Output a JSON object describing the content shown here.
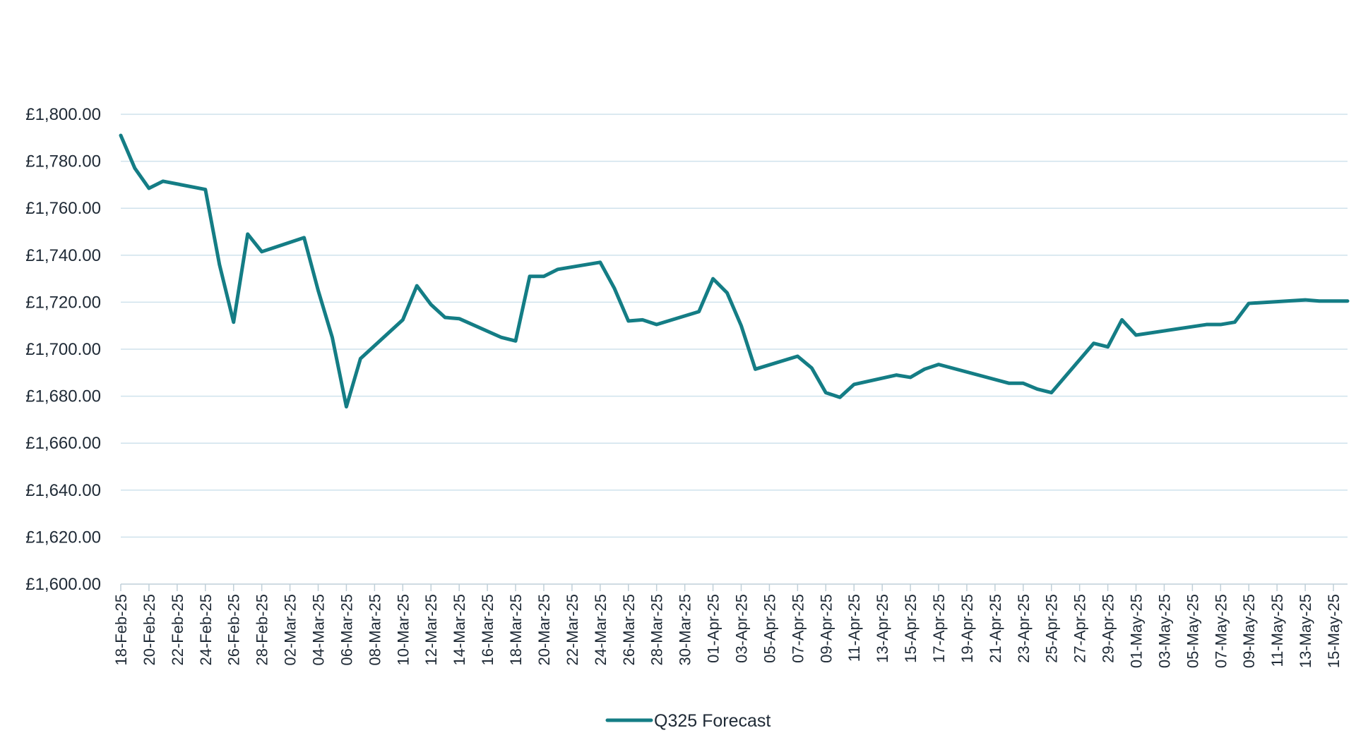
{
  "chart_data": {
    "type": "line",
    "ylim": [
      1600,
      1800
    ],
    "y_ticks": [
      1600,
      1620,
      1640,
      1660,
      1680,
      1700,
      1720,
      1740,
      1760,
      1780,
      1800
    ],
    "y_tick_labels": [
      "£1,600.00",
      "£1,620.00",
      "£1,640.00",
      "£1,660.00",
      "£1,680.00",
      "£1,700.00",
      "£1,720.00",
      "£1,740.00",
      "£1,760.00",
      "£1,780.00",
      "£1,800.00"
    ],
    "x_range": [
      "2025-02-18",
      "2025-05-16"
    ],
    "x_tick_labels": [
      "18-Feb-25",
      "20-Feb-25",
      "22-Feb-25",
      "24-Feb-25",
      "26-Feb-25",
      "28-Feb-25",
      "02-Mar-25",
      "04-Mar-25",
      "06-Mar-25",
      "08-Mar-25",
      "10-Mar-25",
      "12-Mar-25",
      "14-Mar-25",
      "16-Mar-25",
      "18-Mar-25",
      "20-Mar-25",
      "22-Mar-25",
      "24-Mar-25",
      "26-Mar-25",
      "28-Mar-25",
      "30-Mar-25",
      "01-Apr-25",
      "03-Apr-25",
      "05-Apr-25",
      "07-Apr-25",
      "09-Apr-25",
      "11-Apr-25",
      "13-Apr-25",
      "15-Apr-25",
      "17-Apr-25",
      "19-Apr-25",
      "21-Apr-25",
      "23-Apr-25",
      "25-Apr-25",
      "27-Apr-25",
      "29-Apr-25",
      "01-May-25",
      "03-May-25",
      "05-May-25",
      "07-May-25",
      "09-May-25",
      "11-May-25",
      "13-May-25",
      "15-May-25"
    ],
    "grid": true,
    "legend_position": "bottom-center",
    "series": [
      {
        "name": "Q325 Forecast",
        "color": "#147d85",
        "points": [
          {
            "x": "2025-02-18",
            "y": 1791
          },
          {
            "x": "2025-02-19",
            "y": 1777
          },
          {
            "x": "2025-02-20",
            "y": 1768.5
          },
          {
            "x": "2025-02-21",
            "y": 1771.5
          },
          {
            "x": "2025-02-24",
            "y": 1768
          },
          {
            "x": "2025-02-25",
            "y": 1736
          },
          {
            "x": "2025-02-26",
            "y": 1711.5
          },
          {
            "x": "2025-02-27",
            "y": 1749
          },
          {
            "x": "2025-02-28",
            "y": 1741.5
          },
          {
            "x": "2025-03-03",
            "y": 1747.5
          },
          {
            "x": "2025-03-04",
            "y": 1725
          },
          {
            "x": "2025-03-05",
            "y": 1705
          },
          {
            "x": "2025-03-06",
            "y": 1675.5
          },
          {
            "x": "2025-03-07",
            "y": 1696
          },
          {
            "x": "2025-03-10",
            "y": 1712.5
          },
          {
            "x": "2025-03-11",
            "y": 1727
          },
          {
            "x": "2025-03-12",
            "y": 1719
          },
          {
            "x": "2025-03-13",
            "y": 1713.5
          },
          {
            "x": "2025-03-14",
            "y": 1713
          },
          {
            "x": "2025-03-17",
            "y": 1705
          },
          {
            "x": "2025-03-18",
            "y": 1703.5
          },
          {
            "x": "2025-03-19",
            "y": 1731
          },
          {
            "x": "2025-03-20",
            "y": 1731
          },
          {
            "x": "2025-03-21",
            "y": 1734
          },
          {
            "x": "2025-03-24",
            "y": 1737
          },
          {
            "x": "2025-03-25",
            "y": 1726
          },
          {
            "x": "2025-03-26",
            "y": 1712
          },
          {
            "x": "2025-03-27",
            "y": 1712.5
          },
          {
            "x": "2025-03-28",
            "y": 1710.5
          },
          {
            "x": "2025-03-31",
            "y": 1716
          },
          {
            "x": "2025-04-01",
            "y": 1730
          },
          {
            "x": "2025-04-02",
            "y": 1724
          },
          {
            "x": "2025-04-03",
            "y": 1710
          },
          {
            "x": "2025-04-04",
            "y": 1691.5
          },
          {
            "x": "2025-04-07",
            "y": 1697
          },
          {
            "x": "2025-04-08",
            "y": 1692
          },
          {
            "x": "2025-04-09",
            "y": 1681.5
          },
          {
            "x": "2025-04-10",
            "y": 1679.5
          },
          {
            "x": "2025-04-11",
            "y": 1685
          },
          {
            "x": "2025-04-14",
            "y": 1689
          },
          {
            "x": "2025-04-15",
            "y": 1688
          },
          {
            "x": "2025-04-16",
            "y": 1691.5
          },
          {
            "x": "2025-04-17",
            "y": 1693.5
          },
          {
            "x": "2025-04-22",
            "y": 1685.5
          },
          {
            "x": "2025-04-23",
            "y": 1685.5
          },
          {
            "x": "2025-04-24",
            "y": 1683
          },
          {
            "x": "2025-04-25",
            "y": 1681.5
          },
          {
            "x": "2025-04-28",
            "y": 1702.5
          },
          {
            "x": "2025-04-29",
            "y": 1701
          },
          {
            "x": "2025-04-30",
            "y": 1712.5
          },
          {
            "x": "2025-05-01",
            "y": 1706
          },
          {
            "x": "2025-05-06",
            "y": 1710.5
          },
          {
            "x": "2025-05-07",
            "y": 1710.5
          },
          {
            "x": "2025-05-08",
            "y": 1711.5
          },
          {
            "x": "2025-05-09",
            "y": 1719.5
          },
          {
            "x": "2025-05-13",
            "y": 1721
          },
          {
            "x": "2025-05-14",
            "y": 1720.5
          },
          {
            "x": "2025-05-16",
            "y": 1720.5
          }
        ]
      }
    ]
  }
}
